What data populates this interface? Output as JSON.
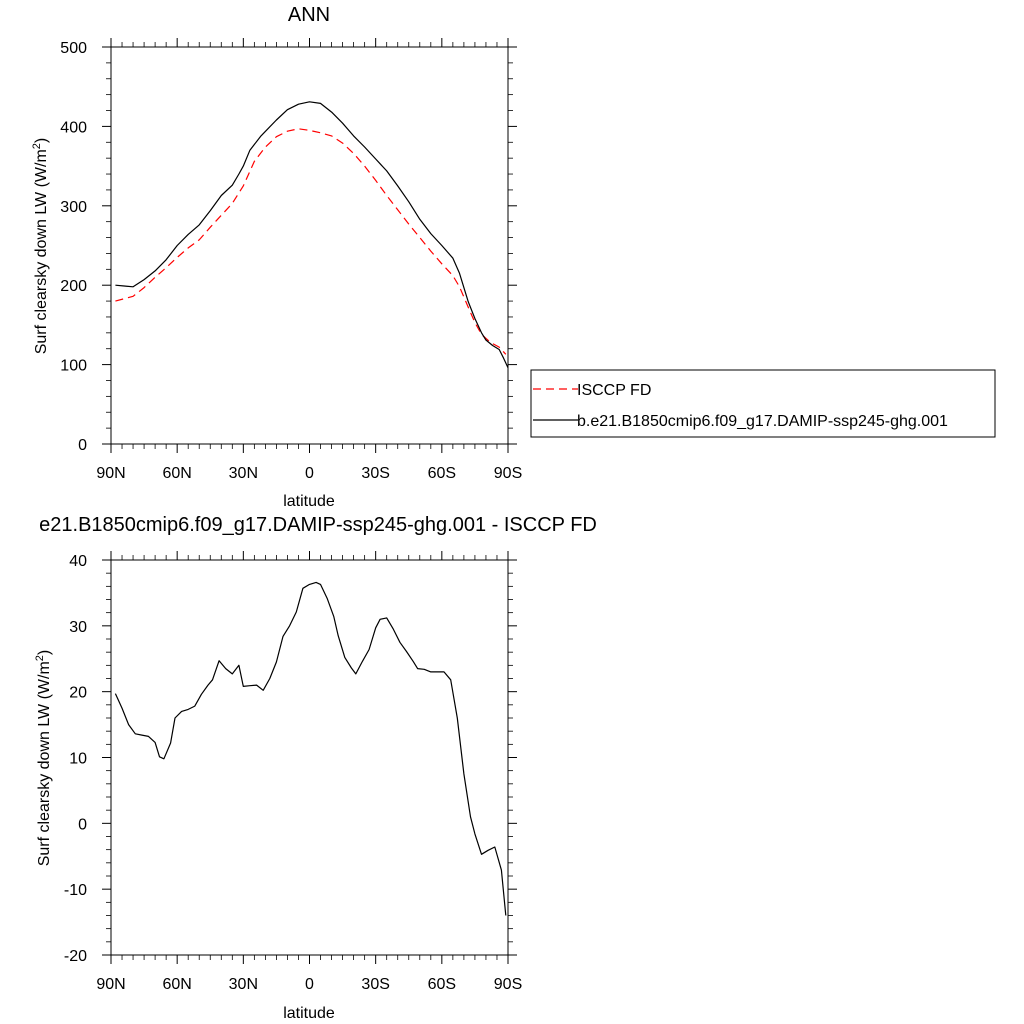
{
  "chart_data": [
    {
      "type": "line",
      "title": "ANN",
      "xlabel": "latitude",
      "ylabel": "Surf clearsky down LW (W/m",
      "ylabel_sup": "2",
      "ylabel_suffix": ")",
      "xlim": [
        -90,
        90
      ],
      "ylim": [
        0,
        500
      ],
      "x_reversed": true,
      "yticks": [
        0,
        100,
        200,
        300,
        400,
        500
      ],
      "xticks": [
        {
          "value": -90,
          "label": "90N"
        },
        {
          "value": -60,
          "label": "60N"
        },
        {
          "value": -30,
          "label": "30N"
        },
        {
          "value": 0,
          "label": "0"
        },
        {
          "value": 30,
          "label": "30S"
        },
        {
          "value": 60,
          "label": "60S"
        },
        {
          "value": 90,
          "label": "90S"
        }
      ],
      "legend": {
        "placement": "right",
        "entries": [
          "ISCCP FD",
          "b.e21.B1850cmip6.f09_g17.DAMIP-ssp245-ghg.001"
        ]
      },
      "series": [
        {
          "name": "ISCCP FD",
          "color": "#ff0000",
          "dash": true,
          "points": [
            [
              -88,
              180
            ],
            [
              -84,
              183
            ],
            [
              -80,
              186
            ],
            [
              -75,
              197
            ],
            [
              -70,
              210
            ],
            [
              -65,
              222
            ],
            [
              -60,
              235
            ],
            [
              -55,
              247
            ],
            [
              -50,
              257
            ],
            [
              -45,
              273
            ],
            [
              -40,
              288
            ],
            [
              -35,
              303
            ],
            [
              -30,
              325
            ],
            [
              -25,
              356
            ],
            [
              -20,
              374
            ],
            [
              -15,
              387
            ],
            [
              -10,
              394
            ],
            [
              -5,
              397
            ],
            [
              0,
              395
            ],
            [
              5,
              392
            ],
            [
              10,
              388
            ],
            [
              15,
              379
            ],
            [
              20,
              366
            ],
            [
              25,
              350
            ],
            [
              30,
              332
            ],
            [
              35,
              313
            ],
            [
              40,
              295
            ],
            [
              45,
              277
            ],
            [
              50,
              260
            ],
            [
              55,
              243
            ],
            [
              60,
              227
            ],
            [
              65,
              212
            ],
            [
              68,
              198
            ],
            [
              72,
              172
            ],
            [
              75,
              153
            ],
            [
              78,
              138
            ],
            [
              82,
              128
            ],
            [
              86,
              122
            ],
            [
              89,
              113
            ]
          ]
        },
        {
          "name": "b.e21.B1850cmip6.f09_g17.DAMIP-ssp245-ghg.001",
          "color": "#000000",
          "dash": false,
          "points": [
            [
              -88,
              200
            ],
            [
              -84,
              199
            ],
            [
              -80,
              198
            ],
            [
              -75,
              207
            ],
            [
              -70,
              218
            ],
            [
              -65,
              232
            ],
            [
              -60,
              250
            ],
            [
              -55,
              264
            ],
            [
              -50,
              276
            ],
            [
              -45,
              294
            ],
            [
              -40,
              313
            ],
            [
              -35,
              326
            ],
            [
              -32,
              340
            ],
            [
              -30,
              350
            ],
            [
              -27,
              370
            ],
            [
              -22,
              388
            ],
            [
              -15,
              408
            ],
            [
              -10,
              421
            ],
            [
              -5,
              428
            ],
            [
              0,
              431
            ],
            [
              5,
              429
            ],
            [
              10,
              418
            ],
            [
              15,
              404
            ],
            [
              20,
              388
            ],
            [
              25,
              374
            ],
            [
              30,
              359
            ],
            [
              35,
              344
            ],
            [
              40,
              325
            ],
            [
              45,
              305
            ],
            [
              50,
              283
            ],
            [
              55,
              265
            ],
            [
              60,
              250
            ],
            [
              65,
              234
            ],
            [
              68,
              215
            ],
            [
              72,
              179
            ],
            [
              75,
              158
            ],
            [
              78,
              140
            ],
            [
              80,
              131
            ],
            [
              83,
              124
            ],
            [
              86,
              119
            ],
            [
              88,
              108
            ],
            [
              90,
              96
            ]
          ]
        }
      ]
    },
    {
      "type": "line",
      "title": "e21.B1850cmip6.f09_g17.DAMIP-ssp245-ghg.001 - ISCCP FD",
      "xlabel": "latitude",
      "ylabel": "Surf clearsky down LW (W/m",
      "ylabel_sup": "2",
      "ylabel_suffix": ")",
      "xlim": [
        -90,
        90
      ],
      "ylim": [
        -20,
        40
      ],
      "x_reversed": true,
      "yticks": [
        -20,
        -10,
        0,
        10,
        20,
        30,
        40
      ],
      "xticks": [
        {
          "value": -90,
          "label": "90N"
        },
        {
          "value": -60,
          "label": "60N"
        },
        {
          "value": -30,
          "label": "30N"
        },
        {
          "value": 0,
          "label": "0"
        },
        {
          "value": 30,
          "label": "30S"
        },
        {
          "value": 60,
          "label": "60S"
        },
        {
          "value": 90,
          "label": "90S"
        }
      ],
      "series": [
        {
          "color": "#000000",
          "dash": false,
          "points": [
            [
              -88,
              19.7
            ],
            [
              -85,
              17.5
            ],
            [
              -82,
              15.0
            ],
            [
              -79,
              13.6
            ],
            [
              -76,
              13.4
            ],
            [
              -73,
              13.2
            ],
            [
              -70,
              12.3
            ],
            [
              -68,
              10.1
            ],
            [
              -66,
              9.8
            ],
            [
              -63,
              12.2
            ],
            [
              -61,
              16.0
            ],
            [
              -58,
              17.0
            ],
            [
              -55,
              17.3
            ],
            [
              -52,
              17.8
            ],
            [
              -49,
              19.6
            ],
            [
              -46,
              21.0
            ],
            [
              -44,
              21.8
            ],
            [
              -41,
              24.7
            ],
            [
              -38,
              23.5
            ],
            [
              -35,
              22.7
            ],
            [
              -32,
              24.0
            ],
            [
              -30,
              20.8
            ],
            [
              -27,
              20.9
            ],
            [
              -24,
              21.0
            ],
            [
              -21,
              20.2
            ],
            [
              -18,
              22.0
            ],
            [
              -15,
              24.5
            ],
            [
              -12,
              28.4
            ],
            [
              -9,
              30.0
            ],
            [
              -6,
              32.1
            ],
            [
              -3,
              35.7
            ],
            [
              0,
              36.3
            ],
            [
              3,
              36.6
            ],
            [
              5,
              36.3
            ],
            [
              8,
              34.2
            ],
            [
              11,
              31.4
            ],
            [
              13,
              28.5
            ],
            [
              16,
              25.2
            ],
            [
              19,
              23.6
            ],
            [
              21,
              22.7
            ],
            [
              24,
              24.6
            ],
            [
              27,
              26.4
            ],
            [
              30,
              29.7
            ],
            [
              32,
              31.0
            ],
            [
              35,
              31.2
            ],
            [
              38,
              29.5
            ],
            [
              41,
              27.5
            ],
            [
              44,
              26.1
            ],
            [
              47,
              24.6
            ],
            [
              49,
              23.5
            ],
            [
              52,
              23.4
            ],
            [
              55,
              23.0
            ],
            [
              58,
              23.0
            ],
            [
              61,
              23.0
            ],
            [
              64,
              21.8
            ],
            [
              67,
              16.0
            ],
            [
              70,
              7.5
            ],
            [
              73,
              1.0
            ],
            [
              75,
              -1.6
            ],
            [
              78,
              -4.7
            ],
            [
              81,
              -4.1
            ],
            [
              84,
              -3.6
            ],
            [
              87,
              -7.1
            ],
            [
              89,
              -14.0
            ]
          ]
        }
      ]
    }
  ]
}
